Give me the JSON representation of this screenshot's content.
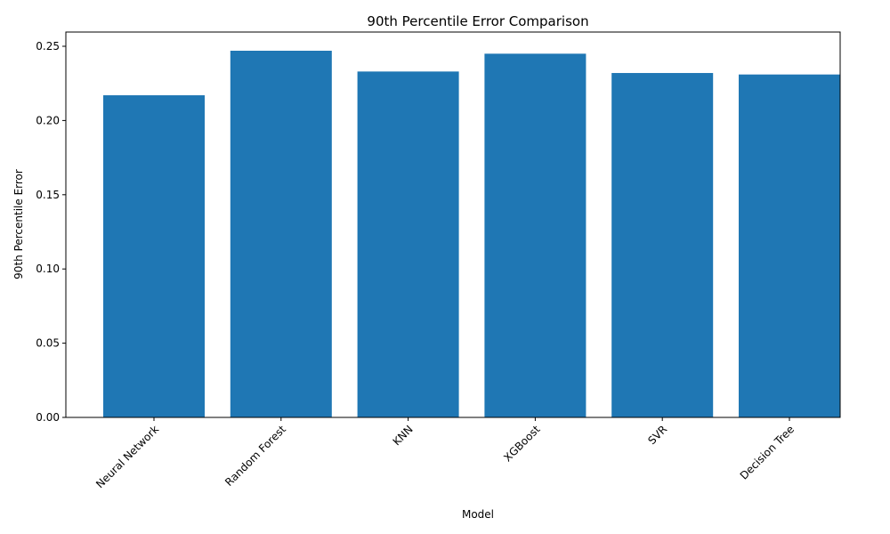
{
  "chart_data": {
    "type": "bar",
    "title": "90th Percentile Error Comparison",
    "xlabel": "Model",
    "ylabel": "90th Percentile Error",
    "categories": [
      "Neural Network",
      "Random Forest",
      "KNN",
      "XGBoost",
      "SVR",
      "Decision Tree"
    ],
    "values": [
      0.217,
      0.247,
      0.233,
      0.245,
      0.232,
      0.231
    ],
    "ylim": [
      0,
      0.26
    ],
    "yticks": [
      "0.00",
      "0.05",
      "0.10",
      "0.15",
      "0.20",
      "0.25"
    ],
    "ytick_values": [
      0,
      0.05,
      0.1,
      0.15,
      0.2,
      0.25
    ],
    "xtick_rotation": 45,
    "grid": false,
    "colors": {
      "bar": "#1f77b4"
    }
  }
}
